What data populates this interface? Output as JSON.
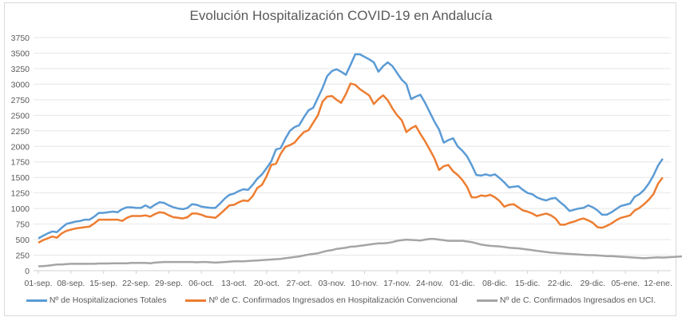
{
  "chart_data": {
    "type": "line",
    "title": "Evolución Hospitalización COVID-19 en Andalucía",
    "xlabel": "",
    "ylabel": "",
    "ylim": [
      0,
      3750
    ],
    "yticks": [
      0,
      250,
      500,
      750,
      1000,
      1250,
      1500,
      1750,
      2000,
      2250,
      2500,
      2750,
      3000,
      3250,
      3500,
      3750
    ],
    "x_tick_labels": [
      "01-sep.",
      "08-sep.",
      "15-sep.",
      "22-sep.",
      "29-sep.",
      "06-oct.",
      "13-oct.",
      "20-oct.",
      "27-oct.",
      "03-nov.",
      "10-nov.",
      "17-nov.",
      "24-nov.",
      "01-dic.",
      "08-dic.",
      "15-dic.",
      "22-dic.",
      "29-dic.",
      "05-ene.",
      "12-ene."
    ],
    "x_tick_interval_days": 7,
    "x_start": "01-sep.",
    "x_end": "13-ene.",
    "grid": true,
    "legend_position": "bottom",
    "series": [
      {
        "name": "Nº de Hospitalizaciones Totales",
        "color": "#5b9bd5",
        "values": [
          520,
          560,
          600,
          630,
          620,
          690,
          750,
          770,
          790,
          800,
          820,
          820,
          870,
          930,
          930,
          940,
          950,
          940,
          990,
          1020,
          1020,
          1010,
          1010,
          1050,
          1010,
          1060,
          1100,
          1090,
          1050,
          1020,
          1000,
          990,
          1010,
          1070,
          1060,
          1030,
          1020,
          1010,
          1010,
          1080,
          1160,
          1220,
          1240,
          1280,
          1310,
          1300,
          1380,
          1480,
          1550,
          1650,
          1760,
          1950,
          1970,
          2120,
          2250,
          2310,
          2340,
          2470,
          2580,
          2620,
          2780,
          2940,
          3130,
          3210,
          3240,
          3200,
          3150,
          3310,
          3480,
          3480,
          3440,
          3400,
          3350,
          3200,
          3290,
          3350,
          3290,
          3180,
          3070,
          3000,
          2760,
          2800,
          2830,
          2700,
          2550,
          2400,
          2270,
          2060,
          2100,
          2130,
          2000,
          1930,
          1840,
          1700,
          1540,
          1530,
          1550,
          1530,
          1550,
          1490,
          1420,
          1340,
          1350,
          1360,
          1300,
          1250,
          1230,
          1180,
          1150,
          1130,
          1160,
          1170,
          1100,
          1040,
          960,
          980,
          1000,
          1010,
          1050,
          1020,
          970,
          900,
          900,
          940,
          990,
          1040,
          1060,
          1080,
          1190,
          1230,
          1300,
          1400,
          1530,
          1690,
          1800
        ]
      },
      {
        "name": "Nº de C. Confirmados Ingresados en Hospitalización Convencional",
        "color": "#ed7d31",
        "values": [
          450,
          490,
          520,
          550,
          530,
          600,
          640,
          660,
          680,
          690,
          700,
          710,
          760,
          820,
          820,
          820,
          820,
          820,
          800,
          850,
          880,
          880,
          880,
          890,
          870,
          910,
          940,
          930,
          890,
          860,
          850,
          840,
          860,
          920,
          920,
          900,
          870,
          860,
          850,
          910,
          980,
          1050,
          1060,
          1100,
          1130,
          1120,
          1200,
          1330,
          1380,
          1520,
          1700,
          1720,
          1880,
          1990,
          2020,
          2060,
          2150,
          2230,
          2260,
          2380,
          2500,
          2720,
          2800,
          2810,
          2750,
          2700,
          2840,
          3010,
          2990,
          2920,
          2870,
          2820,
          2680,
          2760,
          2820,
          2740,
          2610,
          2500,
          2420,
          2230,
          2290,
          2330,
          2200,
          2080,
          1950,
          1810,
          1620,
          1680,
          1700,
          1600,
          1540,
          1460,
          1350,
          1180,
          1180,
          1210,
          1200,
          1220,
          1180,
          1120,
          1030,
          1060,
          1070,
          1020,
          970,
          950,
          920,
          880,
          900,
          920,
          890,
          840,
          740,
          740,
          770,
          790,
          820,
          840,
          810,
          770,
          700,
          690,
          720,
          760,
          810,
          850,
          870,
          890,
          970,
          1010,
          1070,
          1140,
          1230,
          1400,
          1500
        ]
      },
      {
        "name": "Nº de C. Confirmados Ingresados en UCI.",
        "color": "#a5a5a5",
        "values": [
          70,
          75,
          80,
          90,
          100,
          100,
          105,
          110,
          110,
          110,
          110,
          110,
          110,
          115,
          115,
          115,
          118,
          118,
          120,
          120,
          125,
          125,
          125,
          125,
          120,
          130,
          135,
          140,
          140,
          140,
          140,
          140,
          140,
          140,
          135,
          140,
          140,
          135,
          130,
          135,
          140,
          145,
          150,
          150,
          150,
          155,
          160,
          165,
          170,
          175,
          180,
          185,
          190,
          200,
          210,
          220,
          230,
          245,
          260,
          270,
          280,
          300,
          320,
          330,
          350,
          360,
          370,
          385,
          390,
          400,
          410,
          420,
          430,
          440,
          440,
          445,
          460,
          480,
          490,
          500,
          495,
          490,
          485,
          500,
          510,
          510,
          500,
          490,
          480,
          480,
          480,
          480,
          470,
          460,
          440,
          420,
          410,
          400,
          395,
          390,
          380,
          370,
          365,
          360,
          350,
          340,
          330,
          320,
          310,
          300,
          290,
          285,
          280,
          275,
          270,
          265,
          260,
          255,
          250,
          250,
          245,
          240,
          235,
          235,
          230,
          225,
          220,
          215,
          210,
          205,
          200,
          205,
          210,
          215,
          210,
          215,
          220,
          225,
          230,
          250,
          270,
          280
        ]
      }
    ]
  }
}
